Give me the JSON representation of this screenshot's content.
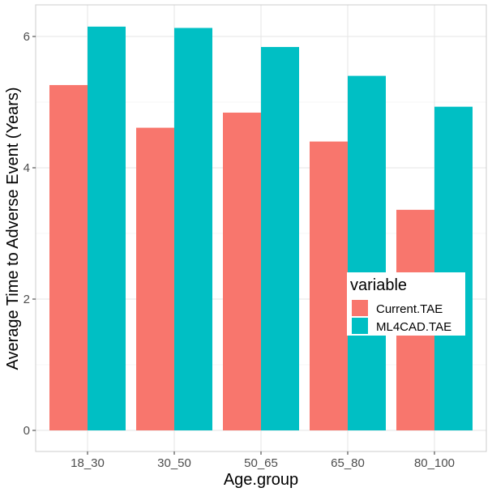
{
  "chart_data": {
    "type": "bar",
    "xlabel": "Age.group",
    "ylabel": "Average Time to Adverse Event (Years)",
    "categories": [
      "18_30",
      "30_50",
      "50_65",
      "65_80",
      "80_100"
    ],
    "series": [
      {
        "name": "Current.TAE",
        "color": "#F8766D",
        "values": [
          5.26,
          4.61,
          4.84,
          4.4,
          3.36
        ]
      },
      {
        "name": "ML4CAD.TAE",
        "color": "#00BFC4",
        "values": [
          6.15,
          6.13,
          5.84,
          5.4,
          4.93
        ]
      }
    ],
    "ylim": [
      0,
      6.5
    ],
    "yticks": [
      "0",
      "2",
      "4",
      "6"
    ],
    "grid": true,
    "legend": {
      "title": "variable",
      "position": "inside-right"
    }
  }
}
